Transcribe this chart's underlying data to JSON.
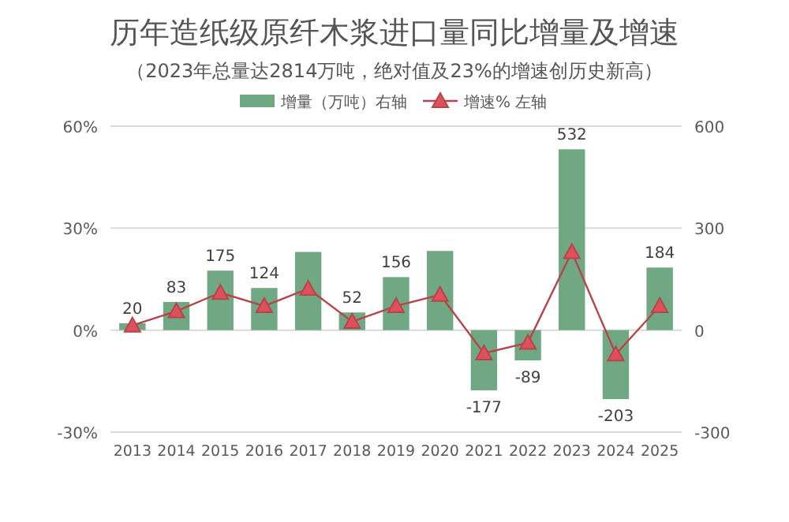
{
  "chart_data": {
    "type": "bar",
    "title": "历年造纸级原纤木浆进口量同比增量及增速",
    "subtitle": "（2023年总量达2814万吨，绝对值及23%的增速创历史新高）",
    "categories": [
      "2013",
      "2014",
      "2015",
      "2016",
      "2017",
      "2018",
      "2019",
      "2020",
      "2021",
      "2022",
      "2023",
      "2024",
      "2025"
    ],
    "series": [
      {
        "name": "增量（万吨）右轴",
        "axis": "y2",
        "color": "#6fa882",
        "values": [
          20,
          83,
          175,
          124,
          230,
          52,
          156,
          233,
          -177,
          -89,
          532,
          -203,
          184
        ],
        "value_labels": [
          "20",
          "83",
          "175",
          "124",
          null,
          "52",
          "156",
          null,
          "-177",
          "-89",
          "532",
          "-203",
          "184"
        ]
      },
      {
        "name": "增速% 左轴",
        "type": "line",
        "color": "#b5454a",
        "marker": "triangle",
        "values": [
          1.4,
          5.6,
          11,
          7.1,
          12.2,
          2.5,
          7.1,
          10.4,
          -6.8,
          -3.7,
          23,
          -7.1,
          7.1
        ]
      }
    ],
    "ylim": [
      -30,
      60
    ],
    "yticks": [
      {
        "value": -30,
        "label": "-30%"
      },
      {
        "value": 0,
        "label": "0%"
      },
      {
        "value": 30,
        "label": "30%"
      },
      {
        "value": 60,
        "label": "60%"
      }
    ],
    "y2lim": [
      -300,
      600
    ],
    "y2ticks": [
      -300,
      0,
      300,
      600
    ],
    "grid": "y",
    "legend": "top"
  }
}
